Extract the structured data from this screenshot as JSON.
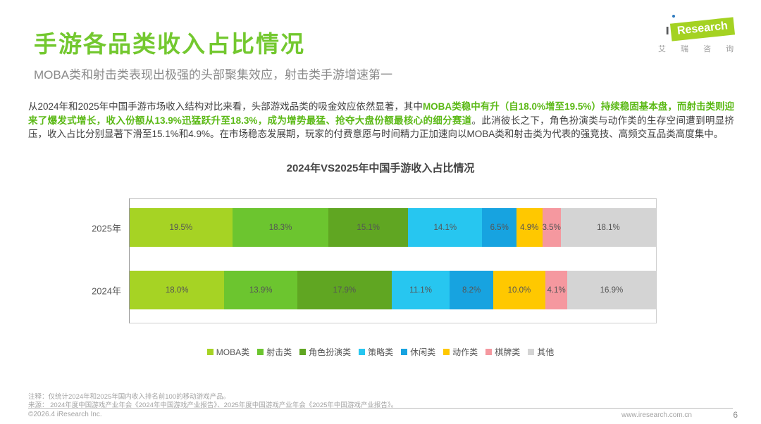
{
  "page": {
    "title": "手游各品类收入占比情况",
    "subtitle": "MOBA类和射击类表现出极强的头部聚集效应，射击类手游增速第一",
    "logo": {
      "i": "ı",
      "research": "Research",
      "cn": "艾 瑞 咨 询"
    },
    "paragraph": {
      "part1": "从2024年和2025年中国手游市场收入结构对比来看，头部游戏品类的吸金效应依然显著，其中",
      "highlight": "MOBA类稳中有升（自18.0%增至19.5%）持续稳固基本盘，而射击类则迎来了爆发式增长，收入份额从13.9%迅猛跃升至18.3%，成为增势最猛、抢夺大盘份额最核心的细分赛道",
      "part2": "。此消彼长之下，角色扮演类与动作类的生存空间遭到明显挤压，收入占比分别显著下滑至15.1%和4.9%。在市场稳态发展期，玩家的付费意愿与时间精力正加速向以MOBA类和射击类为代表的强竞技、高频交互品类高度集中。"
    },
    "footer": {
      "note": "注释：仅统计2024年和2025年国内收入排名前100的移动游戏产品。",
      "source": "来源： 2024年度中国游戏产业年会《2024年中国游戏产业报告》、2025年度中国游戏产业年会《2025年中国游戏产业报告》。",
      "copyright": "©2026.4 iResearch Inc.",
      "website": "www.iresearch.com.cn",
      "page_number": "6"
    },
    "colors": {
      "title_green": "#73c82f",
      "highlight_green": "#5bb916",
      "logo_green": "#a4d222",
      "logo_dot_blue": "#2f7bbf"
    }
  },
  "chart_data": {
    "type": "bar",
    "subtype": "horizontal-stacked",
    "title": "2024年VS2025年中国手游收入占比情况",
    "categories": [
      "2025年",
      "2024年"
    ],
    "series": [
      {
        "name": "MOBA类",
        "color": "#a6d324",
        "values": [
          19.5,
          18.0
        ]
      },
      {
        "name": "射击类",
        "color": "#6cc52f",
        "values": [
          18.3,
          13.9
        ]
      },
      {
        "name": "角色扮演类",
        "color": "#60a622",
        "values": [
          15.1,
          17.9
        ]
      },
      {
        "name": "策略类",
        "color": "#27c6f0",
        "values": [
          14.1,
          11.1
        ]
      },
      {
        "name": "休闲类",
        "color": "#17a3e0",
        "values": [
          6.5,
          8.2
        ]
      },
      {
        "name": "动作类",
        "color": "#ffc800",
        "values": [
          4.9,
          10.0
        ]
      },
      {
        "name": "棋牌类",
        "color": "#f5989f",
        "values": [
          3.5,
          4.1
        ]
      },
      {
        "name": "其他",
        "color": "#d4d4d4",
        "values": [
          18.1,
          16.9
        ]
      }
    ],
    "value_suffix": "%",
    "xlim": [
      0,
      100
    ],
    "legend_position": "bottom",
    "grid": false
  }
}
